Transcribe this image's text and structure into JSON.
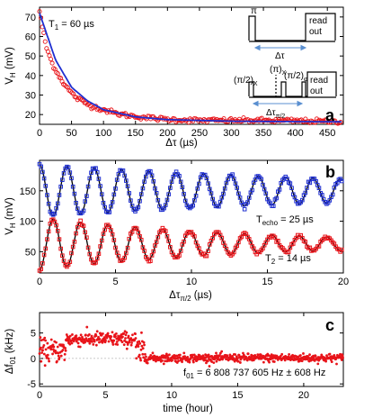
{
  "colors": {
    "red": "#e8141a",
    "blue": "#1f2fd0",
    "black": "#000000",
    "arrow": "#5a8fd0"
  },
  "chart_data": [
    {
      "panel": "a",
      "type": "scatter",
      "xlabel": "Δτ (µs)",
      "ylabel": "V_H (mV)",
      "xlim": [
        0,
        475
      ],
      "ylim": [
        15,
        75
      ],
      "xticks": [
        0,
        50,
        100,
        150,
        200,
        250,
        300,
        350,
        400,
        450
      ],
      "yticks": [
        20,
        30,
        40,
        50,
        60,
        70
      ],
      "annotation": "T₁ = 60 µs",
      "series": [
        {
          "kind": "markers",
          "color": "red",
          "x": [
            0,
            10,
            20,
            30,
            40,
            50,
            60,
            80,
            100,
            120,
            150,
            180,
            200,
            250,
            300,
            350,
            400,
            450,
            470
          ],
          "y": [
            73,
            55,
            46,
            40,
            35,
            31,
            28,
            24.5,
            22.5,
            20.5,
            19,
            18,
            17.5,
            17,
            17,
            17,
            16.8,
            16.5,
            16.5
          ]
        },
        {
          "kind": "fit",
          "color": "blue",
          "x": [
            0,
            25,
            50,
            75,
            100,
            150,
            200,
            300,
            400,
            470
          ],
          "y": [
            72,
            48,
            34,
            27,
            22.5,
            18.8,
            17.4,
            16.6,
            16.4,
            16.3
          ]
        }
      ],
      "inset": {
        "top_labels": {
          "pi": "π",
          "readout_line1": "read",
          "readout_line2": "out",
          "delay": "Δτ"
        },
        "bottom_labels": {
          "pi_half_x": "(π/2)",
          "pi_x": "(π)",
          "pi_half_phi": "(π/2)",
          "sub_x": "X",
          "sub_phi": "φ",
          "readout_line1": "read",
          "readout_line2": "out",
          "delay": "Δτ",
          "delay_sub": "π/2"
        }
      }
    },
    {
      "panel": "b",
      "type": "line",
      "xlabel": "Δτ_π/2 (µs)",
      "ylabel": "V_H (mV)",
      "xlim": [
        0,
        20
      ],
      "ylim": [
        15,
        200
      ],
      "xticks": [
        0,
        5,
        10,
        15,
        20
      ],
      "yticks": [
        50,
        100,
        150
      ],
      "annotations": [
        "T_echo = 25 µs",
        "T₂ = 14 µs"
      ],
      "series": [
        {
          "kind": "markers",
          "color": "blue",
          "name": "echo",
          "model": {
            "offset": 150,
            "amplitude": 43,
            "tau": 25,
            "period": 1.8,
            "phase": 0
          }
        },
        {
          "kind": "markers",
          "color": "red",
          "name": "ramsey",
          "model": {
            "offset": 63,
            "amplitude": 43,
            "tau": 14,
            "period": 1.8,
            "phase": 3.14159
          }
        }
      ]
    },
    {
      "panel": "c",
      "type": "scatter",
      "xlabel": "time (hour)",
      "ylabel": "Δf₀₁ (kHz)",
      "xlim": [
        0,
        23
      ],
      "ylim": [
        -5.5,
        9
      ],
      "xticks": [
        0,
        5,
        10,
        15,
        20
      ],
      "yticks": [
        -5,
        0,
        5
      ],
      "annotation": "f₀₁ = 6 808 737 605 Hz ± 608 Hz",
      "series": [
        {
          "kind": "markers",
          "color": "red",
          "segments": [
            {
              "x_start": 0,
              "x_end": 2,
              "mean": 1.5,
              "spread": 2.5
            },
            {
              "x_start": 2,
              "x_end": 7.3,
              "mean": 3.8,
              "spread": 1.6
            },
            {
              "x_start": 7.3,
              "x_end": 8,
              "mean": 1.2,
              "spread": 3.5
            },
            {
              "x_start": 8,
              "x_end": 23,
              "mean": 0.1,
              "spread": 0.9
            }
          ]
        }
      ]
    }
  ],
  "labels": {
    "a": {
      "letter": "a",
      "ylabel_main": "V",
      "ylabel_sub": "H",
      "ylabel_unit": " (mV)",
      "xlabel": "Δτ (µs)",
      "ann_main": "T",
      "ann_sub": "1",
      "ann_rest": " = 60 µs"
    },
    "b": {
      "letter": "b",
      "ylabel_main": "V",
      "ylabel_sub": "H",
      "ylabel_unit": " (mV)",
      "xlabel_main": "Δτ",
      "xlabel_sub": "π/2",
      "xlabel_unit": " (µs)",
      "ann1_main": "T",
      "ann1_sub": "echo",
      "ann1_rest": " = 25 µs",
      "ann2_main": "T",
      "ann2_sub": "2",
      "ann2_rest": " = 14 µs"
    },
    "c": {
      "letter": "c",
      "ylabel_main": "Δf",
      "ylabel_sub": "01",
      "ylabel_unit": " (kHz)",
      "xlabel": "time (hour)",
      "ann_main": "f",
      "ann_sub": "01",
      "ann_rest": " = 6 808 737 605 Hz ± 608 Hz"
    }
  }
}
